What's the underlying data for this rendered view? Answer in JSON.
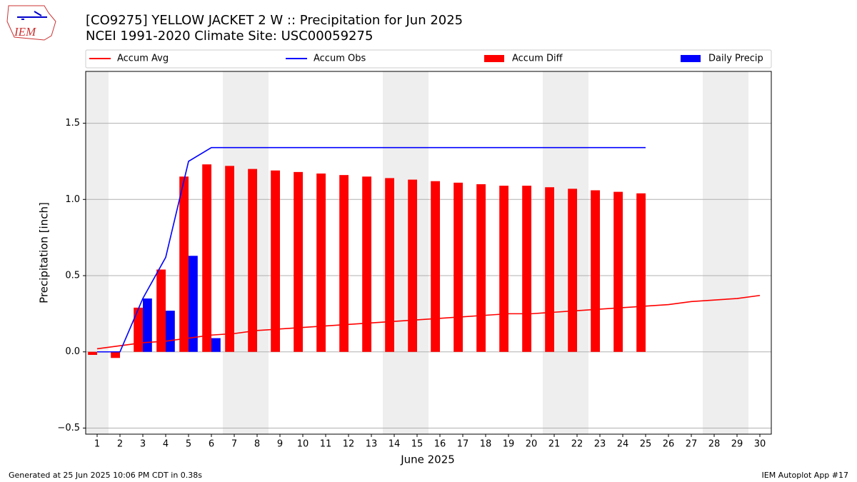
{
  "logo_text": "IEM",
  "footer": {
    "left": "Generated at 25 Jun 2025 10:06 PM CDT in 0.38s",
    "right": "IEM Autoplot App #17"
  },
  "chart_data": {
    "type": "bar",
    "title": "[CO9275] YELLOW JACKET 2 W :: Precipitation for Jun 2025",
    "subtitle": "NCEI 1991-2020 Climate Site: USC00059275",
    "xlabel": "June 2025",
    "ylabel": "Precipitation [inch]",
    "x": [
      1,
      2,
      3,
      4,
      5,
      6,
      7,
      8,
      9,
      10,
      11,
      12,
      13,
      14,
      15,
      16,
      17,
      18,
      19,
      20,
      21,
      22,
      23,
      24,
      25,
      26,
      27,
      28,
      29,
      30
    ],
    "xlim": [
      0.5,
      30.5
    ],
    "xticks": [
      1,
      2,
      3,
      4,
      5,
      6,
      7,
      8,
      9,
      10,
      11,
      12,
      13,
      14,
      15,
      16,
      17,
      18,
      19,
      20,
      21,
      22,
      23,
      24,
      25,
      26,
      27,
      28,
      29,
      30
    ],
    "ylim": [
      -0.54,
      1.84
    ],
    "yticks": [
      {
        "value": -0.5,
        "label": "−0.5"
      },
      {
        "value": 0,
        "label": "0.0"
      },
      0.5,
      {
        "value": 1,
        "label": "1.0"
      },
      1.5
    ],
    "grid": true,
    "weekend_days": [
      1,
      7,
      8,
      14,
      15,
      21,
      22,
      28,
      29
    ],
    "series": [
      {
        "name": "Accum Avg",
        "type": "line",
        "color": "#ff0000",
        "values": [
          0.02,
          0.04,
          0.06,
          0.07,
          0.09,
          0.11,
          0.12,
          0.14,
          0.15,
          0.16,
          0.17,
          0.18,
          0.19,
          0.2,
          0.21,
          0.22,
          0.23,
          0.24,
          0.25,
          0.25,
          0.26,
          0.27,
          0.28,
          0.29,
          0.3,
          0.31,
          0.33,
          0.34,
          0.35,
          0.37
        ]
      },
      {
        "name": "Accum Obs",
        "type": "line",
        "color": "#0000ff",
        "values": [
          0,
          0,
          0.35,
          0.62,
          1.25,
          1.34,
          1.34,
          1.34,
          1.34,
          1.34,
          1.34,
          1.34,
          1.34,
          1.34,
          1.34,
          1.34,
          1.34,
          1.34,
          1.34,
          1.34,
          1.34,
          1.34,
          1.34,
          1.34,
          1.34,
          null,
          null,
          null,
          null,
          null
        ]
      },
      {
        "name": "Accum Diff",
        "type": "bar",
        "color": "#ff0000",
        "side": "left",
        "values": [
          -0.02,
          -0.04,
          0.29,
          0.54,
          1.15,
          1.23,
          1.22,
          1.2,
          1.19,
          1.18,
          1.17,
          1.16,
          1.15,
          1.14,
          1.13,
          1.12,
          1.11,
          1.1,
          1.09,
          1.09,
          1.08,
          1.07,
          1.06,
          1.05,
          1.04,
          null,
          null,
          null,
          null,
          null
        ]
      },
      {
        "name": "Daily Precip",
        "type": "bar",
        "color": "#0000ff",
        "side": "right",
        "values": [
          0,
          0,
          0.35,
          0.27,
          0.63,
          0.09,
          0,
          0,
          0,
          0,
          0,
          0,
          0,
          0,
          0,
          0,
          0,
          0,
          0,
          0,
          0,
          0,
          0,
          0,
          0,
          null,
          null,
          null,
          null,
          null
        ]
      }
    ]
  }
}
